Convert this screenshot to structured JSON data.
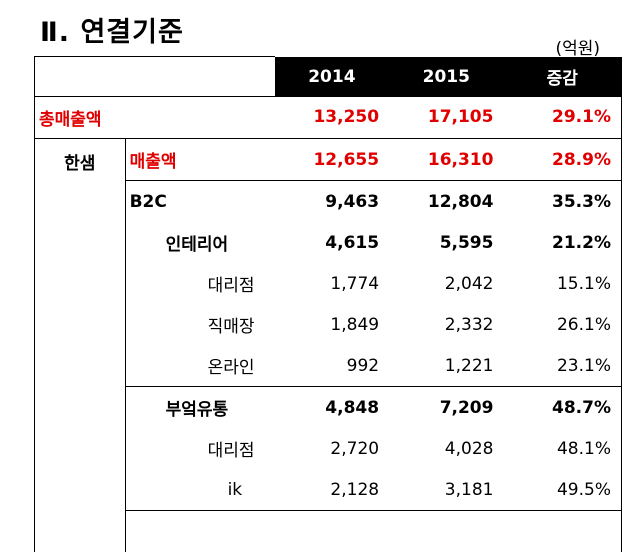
{
  "title": "Ⅱ. 연결기준",
  "unit": "(억원)",
  "header": {
    "col1": "2014",
    "col2": "2015",
    "col3": "증감"
  },
  "rows": {
    "total": {
      "label": "총매출액",
      "v2014": "13,250",
      "v2015": "17,105",
      "chg": "29.1%"
    },
    "group": {
      "label": "한샘"
    },
    "sales": {
      "label": "매출액",
      "v2014": "12,655",
      "v2015": "16,310",
      "chg": "28.9%"
    },
    "b2c": {
      "label": "B2C",
      "v2014": "9,463",
      "v2015": "12,804",
      "chg": "35.3%"
    },
    "interior": {
      "label": "인테리어",
      "v2014": "4,615",
      "v2015": "5,595",
      "chg": "21.2%"
    },
    "agency1": {
      "label": "대리점",
      "v2014": "1,774",
      "v2015": "2,042",
      "chg": "15.1%"
    },
    "direct": {
      "label": "직매장",
      "v2014": "1,849",
      "v2015": "2,332",
      "chg": "26.1%"
    },
    "online": {
      "label": "온라인",
      "v2014": "992",
      "v2015": "1,221",
      "chg": "23.1%"
    },
    "kitchen": {
      "label": "부엌유통",
      "v2014": "4,848",
      "v2015": "7,209",
      "chg": "48.7%"
    },
    "agency2": {
      "label": "대리점",
      "v2014": "2,720",
      "v2015": "4,028",
      "chg": "48.1%"
    },
    "ik": {
      "label": "ik",
      "v2014": "2,128",
      "v2015": "3,181",
      "chg": "49.5%"
    }
  }
}
